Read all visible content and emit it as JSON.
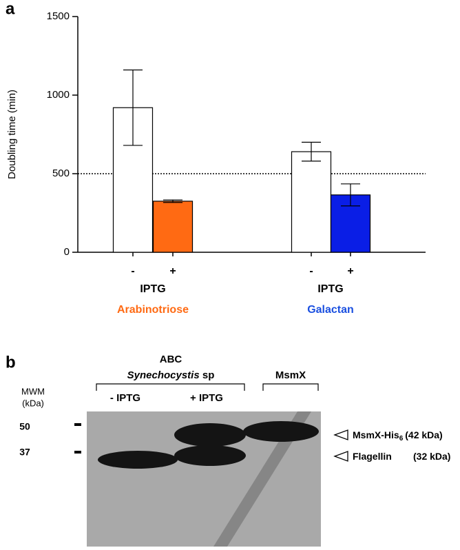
{
  "chart_data": {
    "type": "bar",
    "panel": "a",
    "ylabel": "Doubling time  (min)",
    "categories": [
      "-",
      "+",
      "-",
      "+"
    ],
    "values": [
      920,
      325,
      640,
      365
    ],
    "errors": [
      240,
      8,
      60,
      70
    ],
    "colors": [
      "#ffffff",
      "#ff6a13",
      "#ffffff",
      "#0a1ee6"
    ],
    "groups": [
      {
        "label": "IPTG",
        "name": "Arabinotriose",
        "color": "#ff6a13"
      },
      {
        "label": "IPTG",
        "name": "Galactan",
        "color": "#1a4fe0"
      }
    ],
    "reference_line": 500,
    "ylim": [
      0,
      1500
    ],
    "yticks": [
      0,
      500,
      1000,
      1500
    ]
  },
  "gel": {
    "panel": "b",
    "title": "ABC",
    "organism": "Synechocystis",
    "organism_suffix": "sp",
    "lanes": [
      "- IPTG",
      "+ IPTG",
      "MsmX"
    ],
    "marker_header": "MWM",
    "marker_unit": "(kDa)",
    "markers": [
      "50",
      "37"
    ],
    "band_labels": [
      {
        "name": "MsmX-His",
        "subscript": "6",
        "size": "(42 kDa)"
      },
      {
        "name": "Flagellin",
        "size": "(32 kDa)"
      }
    ]
  }
}
